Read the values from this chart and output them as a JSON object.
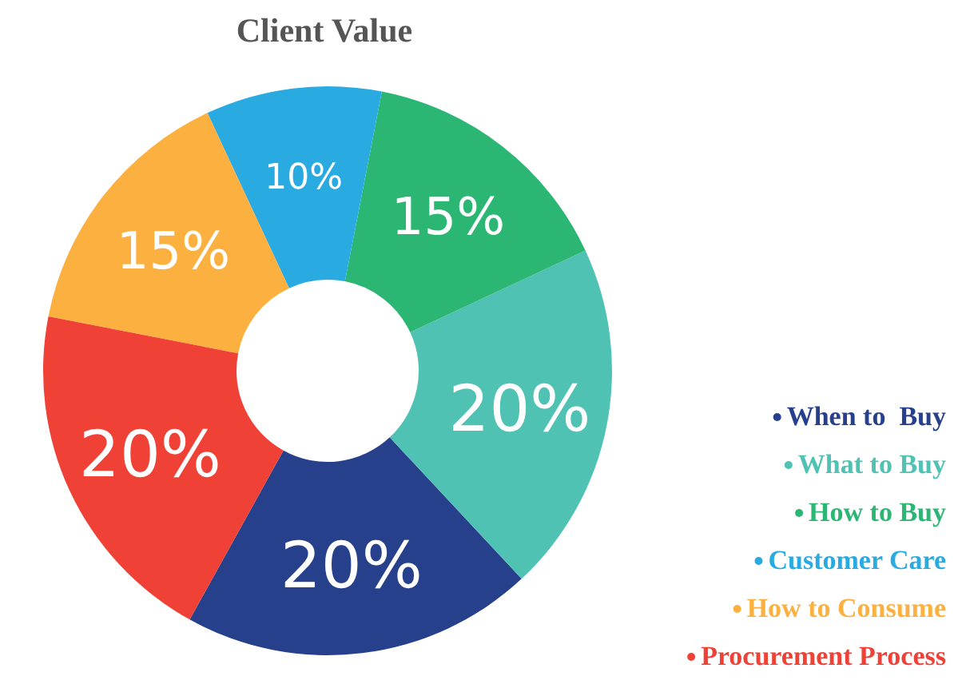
{
  "chart_data": {
    "type": "donut",
    "title": "Client Value",
    "categories": [
      "When to  Buy",
      "What to Buy",
      "How to Buy",
      "Customer Care",
      "How to Consume",
      "Procurement Process"
    ],
    "values": [
      20,
      20,
      15,
      10,
      15,
      20
    ],
    "value_labels": [
      "20%",
      "20%",
      "15%",
      "10%",
      "15%",
      "20%"
    ],
    "colors": [
      "#27408b",
      "#4fc2b3",
      "#2bb673",
      "#29abe2",
      "#fbb040",
      "#ef4136"
    ],
    "legend": "bottom right"
  }
}
